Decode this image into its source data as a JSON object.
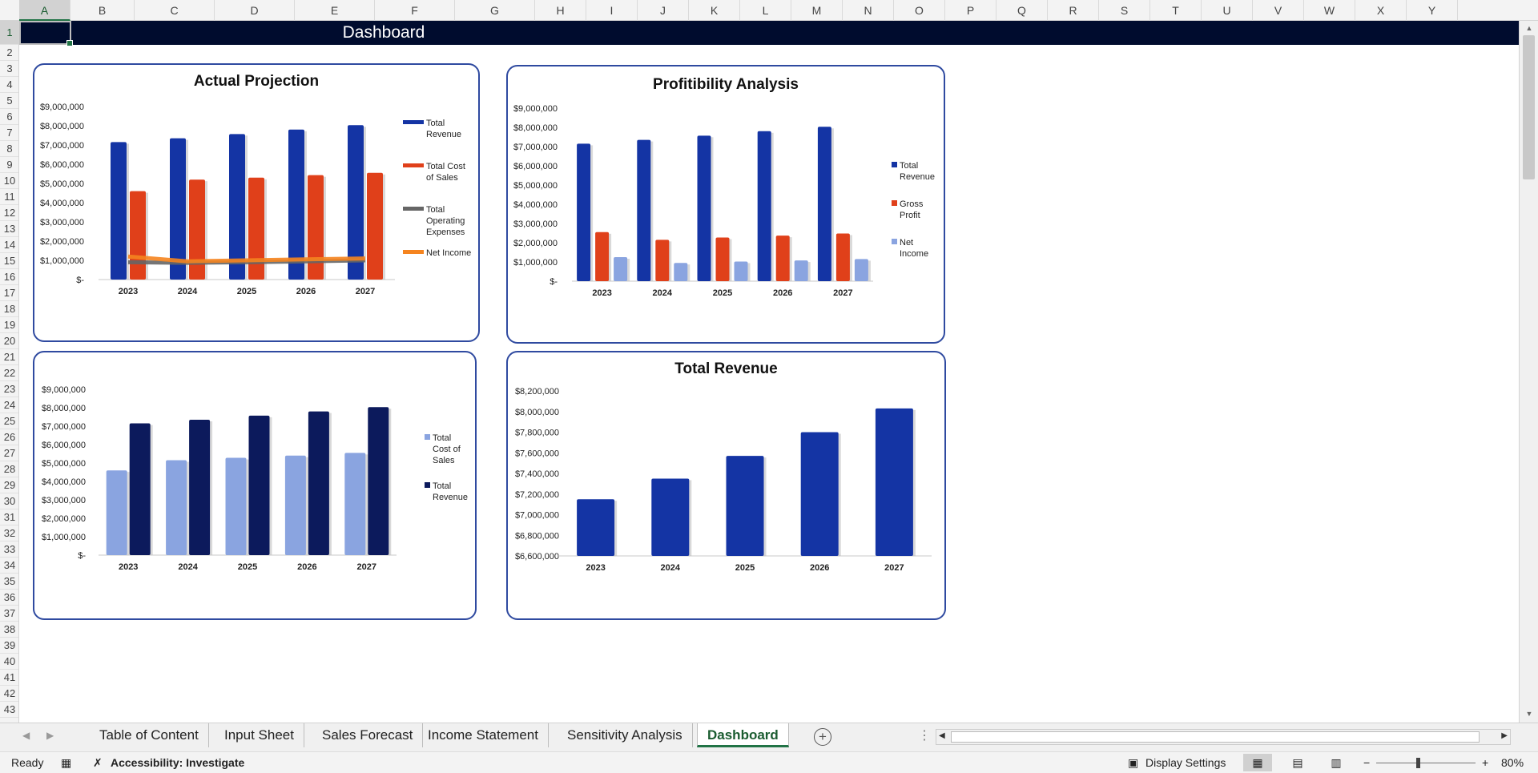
{
  "sheet": {
    "columns": [
      "A",
      "B",
      "C",
      "D",
      "E",
      "F",
      "G",
      "H",
      "I",
      "J",
      "K",
      "L",
      "M",
      "N",
      "O",
      "P",
      "Q",
      "R",
      "S",
      "T",
      "U",
      "V",
      "W",
      "X",
      "Y"
    ],
    "rows": [
      "1",
      "2",
      "3",
      "4",
      "5",
      "6",
      "7",
      "8",
      "9",
      "10",
      "11",
      "12",
      "13",
      "14",
      "15",
      "16",
      "17",
      "18",
      "19",
      "20",
      "21",
      "22",
      "23",
      "24",
      "25",
      "26",
      "27",
      "28",
      "29",
      "30",
      "31",
      "32",
      "33",
      "34",
      "35",
      "36",
      "37",
      "38",
      "39",
      "40",
      "41",
      "42",
      "43"
    ],
    "selected_cell": "A1",
    "header_title": "Dashboard",
    "header_bg": "#000c2e"
  },
  "colors": {
    "revenue": "#1434a4",
    "cost": "#e0401a",
    "opex": "#666666",
    "net_income": "#f5841f",
    "net_income_bar": "#8aa4e0",
    "cost_light": "#8aa4e0",
    "revenue_dark": "#0c1a5c",
    "border": "#2f4aa0"
  },
  "chart_data": [
    {
      "type": "bar",
      "title": "Actual Projection",
      "categories": [
        "2023",
        "2024",
        "2025",
        "2026",
        "2027"
      ],
      "yticks": [
        "$9,000,000",
        "$8,000,000",
        "$7,000,000",
        "$6,000,000",
        "$5,000,000",
        "$4,000,000",
        "$3,000,000",
        "$2,000,000",
        "$1,000,000",
        "$-"
      ],
      "ylim": [
        0,
        9000000
      ],
      "series": [
        {
          "name": "Total Revenue",
          "kind": "bar",
          "values": [
            7150000,
            7350000,
            7570000,
            7800000,
            8030000
          ]
        },
        {
          "name": "Total Cost of Sales",
          "kind": "bar",
          "values": [
            4600000,
            5200000,
            5300000,
            5430000,
            5550000
          ]
        },
        {
          "name": "Total Operating Expenses",
          "kind": "line",
          "values": [
            900000,
            870000,
            900000,
            950000,
            1000000
          ]
        },
        {
          "name": "Net Income",
          "kind": "line",
          "values": [
            1200000,
            950000,
            1000000,
            1050000,
            1100000
          ]
        }
      ],
      "legend": [
        "Total Revenue",
        "Total Cost of Sales",
        "Total Operating Expenses",
        "Net Income"
      ]
    },
    {
      "type": "bar",
      "title": "Profitibility Analysis",
      "categories": [
        "2023",
        "2024",
        "2025",
        "2026",
        "2027"
      ],
      "yticks": [
        "$9,000,000",
        "$8,000,000",
        "$7,000,000",
        "$6,000,000",
        "$5,000,000",
        "$4,000,000",
        "$3,000,000",
        "$2,000,000",
        "$1,000,000",
        "$-"
      ],
      "ylim": [
        0,
        9000000
      ],
      "series": [
        {
          "name": "Total Revenue",
          "values": [
            7150000,
            7350000,
            7570000,
            7800000,
            8030000
          ]
        },
        {
          "name": "Gross Profit",
          "values": [
            2550000,
            2150000,
            2270000,
            2370000,
            2480000
          ]
        },
        {
          "name": "Net Income",
          "values": [
            1250000,
            950000,
            1020000,
            1080000,
            1150000
          ]
        }
      ],
      "legend": [
        "Total Revenue",
        "Gross Profit",
        "Net Income"
      ]
    },
    {
      "type": "bar",
      "title": "",
      "categories": [
        "2023",
        "2024",
        "2025",
        "2026",
        "2027"
      ],
      "yticks": [
        "$9,000,000",
        "$8,000,000",
        "$7,000,000",
        "$6,000,000",
        "$5,000,000",
        "$4,000,000",
        "$3,000,000",
        "$2,000,000",
        "$1,000,000",
        "$-"
      ],
      "ylim": [
        0,
        9000000
      ],
      "series": [
        {
          "name": "Total Cost of Sales",
          "values": [
            4600000,
            5150000,
            5280000,
            5400000,
            5550000
          ]
        },
        {
          "name": "Total Revenue",
          "values": [
            7150000,
            7350000,
            7570000,
            7800000,
            8030000
          ]
        }
      ],
      "legend": [
        "Total Cost of Sales",
        "Total Revenue"
      ]
    },
    {
      "type": "bar",
      "title": "Total Revenue",
      "categories": [
        "2023",
        "2024",
        "2025",
        "2026",
        "2027"
      ],
      "yticks": [
        "$8,200,000",
        "$8,000,000",
        "$7,800,000",
        "$7,600,000",
        "$7,400,000",
        "$7,200,000",
        "$7,000,000",
        "$6,800,000",
        "$6,600,000"
      ],
      "ylim": [
        6600000,
        8200000
      ],
      "series": [
        {
          "name": "Total Revenue",
          "values": [
            7150000,
            7350000,
            7570000,
            7800000,
            8030000
          ]
        }
      ]
    }
  ],
  "tabs": {
    "items": [
      "Table of Content",
      "Input Sheet",
      "Sales Forecast",
      "Income Statement",
      "Sensitivity Analysis",
      "Dashboard"
    ],
    "active": "Dashboard"
  },
  "status": {
    "ready": "Ready",
    "accessibility": "Accessibility: Investigate",
    "display_settings": "Display Settings",
    "zoom": "80%"
  }
}
